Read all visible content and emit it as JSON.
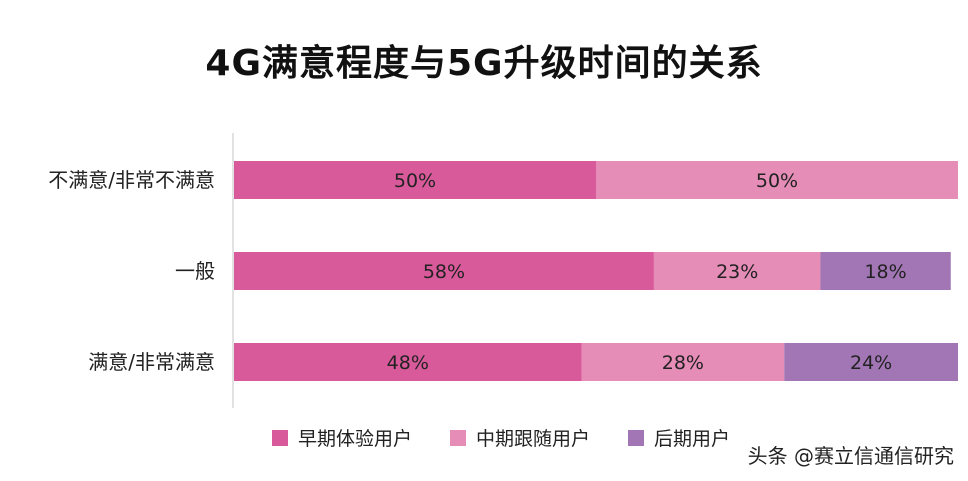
{
  "chart_data": {
    "type": "bar",
    "orientation": "horizontal",
    "stacked": true,
    "percent_stacked": true,
    "title": "4G满意程度与5G升级时间的关系",
    "categories": [
      "不满意/非常不满意",
      "一般",
      "满意/非常满意"
    ],
    "series": [
      {
        "name": "早期体验用户",
        "values": [
          50,
          58,
          48
        ],
        "labels": [
          "50%",
          "58%",
          "48%"
        ],
        "color": "#d95a9b"
      },
      {
        "name": "中期跟随用户",
        "values": [
          50,
          23,
          28
        ],
        "labels": [
          "50%",
          "23%",
          "28%"
        ],
        "color": "#e58cb7"
      },
      {
        "name": "后期用户",
        "values": [
          0,
          18,
          24
        ],
        "labels": [
          "",
          "18%",
          "24%"
        ],
        "color": "#a276b5"
      }
    ],
    "xlim": [
      0,
      100
    ],
    "grid": false,
    "legend_position": "bottom"
  },
  "watermark": "头条 @赛立信通信研究"
}
